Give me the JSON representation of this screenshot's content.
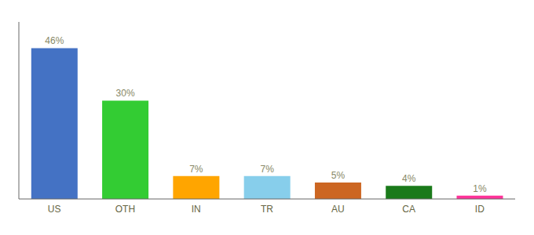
{
  "chart_data": {
    "type": "bar",
    "categories": [
      "US",
      "OTH",
      "IN",
      "TR",
      "AU",
      "CA",
      "ID"
    ],
    "values": [
      46,
      30,
      7,
      7,
      5,
      4,
      1
    ],
    "value_labels": [
      "46%",
      "30%",
      "7%",
      "7%",
      "5%",
      "4%",
      "1%"
    ],
    "data_labels": true,
    "colors": [
      "#4472C4",
      "#33CC33",
      "#FFA500",
      "#87CEEB",
      "#CC6622",
      "#1A7A1A",
      "#FF3399"
    ],
    "ylim": [
      0,
      54
    ],
    "tick_labels": "x"
  }
}
